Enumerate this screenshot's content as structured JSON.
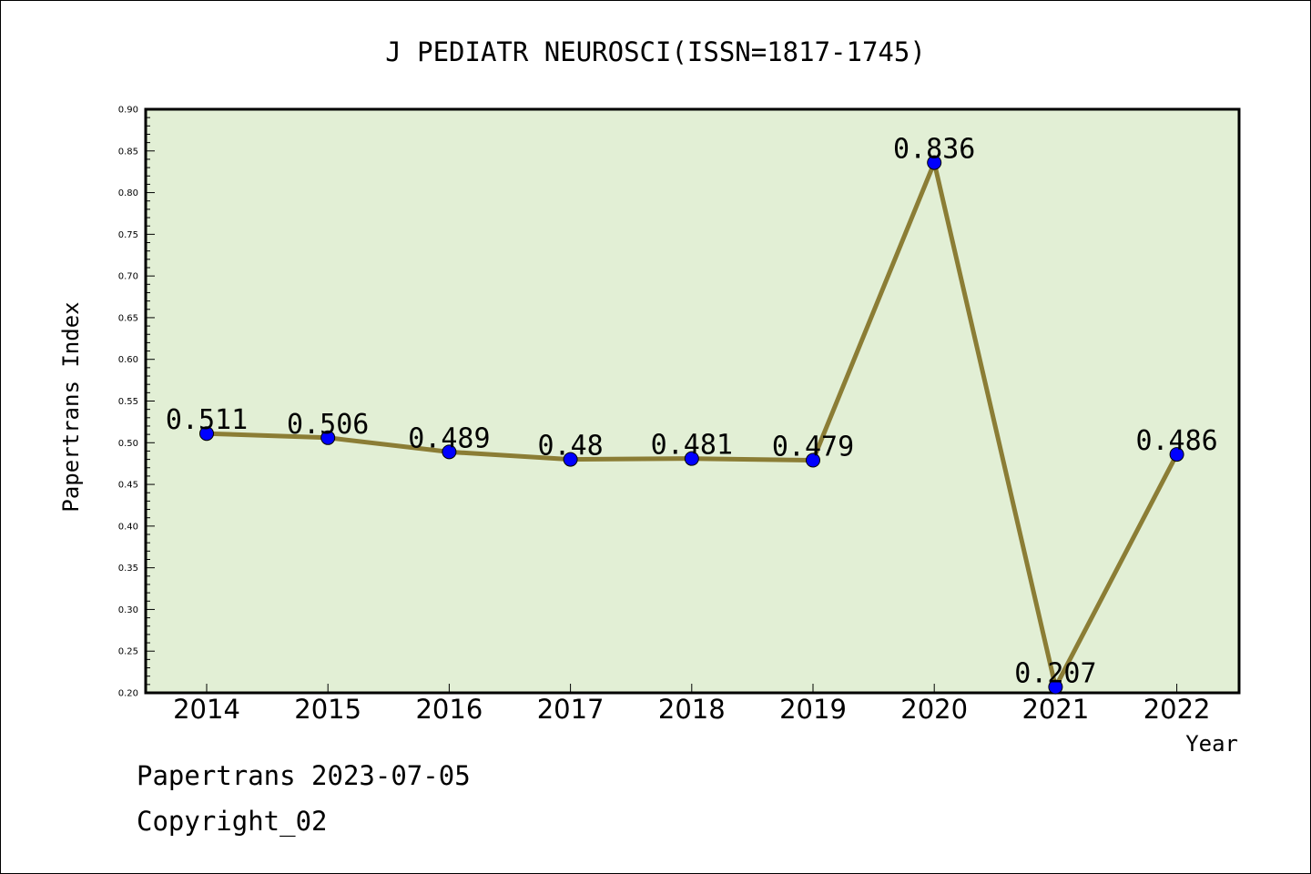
{
  "chart_data": {
    "type": "line",
    "title": "J PEDIATR NEUROSCI(ISSN=1817-1745)",
    "xlabel": "Year",
    "ylabel": "Papertrans Index",
    "categories": [
      "2014",
      "2015",
      "2016",
      "2017",
      "2018",
      "2019",
      "2020",
      "2021",
      "2022"
    ],
    "values": [
      0.511,
      0.506,
      0.489,
      0.48,
      0.481,
      0.479,
      0.836,
      0.207,
      0.486
    ],
    "data_labels": [
      "0.511",
      "0.506",
      "0.489",
      "0.48",
      "0.481",
      "0.479",
      "0.836",
      "0.207",
      "0.486"
    ],
    "ylim": [
      0.2,
      0.9
    ],
    "yticks": [
      "0.20",
      "0.25",
      "0.30",
      "0.35",
      "0.40",
      "0.45",
      "0.50",
      "0.55",
      "0.60",
      "0.65",
      "0.70",
      "0.75",
      "0.80",
      "0.85",
      "0.90"
    ],
    "grid": false,
    "legend": "none",
    "colors": {
      "plot_background": "#e2efd5",
      "line": "#8b7d35",
      "marker": "#0000ff",
      "axis": "#000000"
    }
  },
  "footer": {
    "date_line": "Papertrans 2023-07-05",
    "copyright": "Copyright_02"
  }
}
